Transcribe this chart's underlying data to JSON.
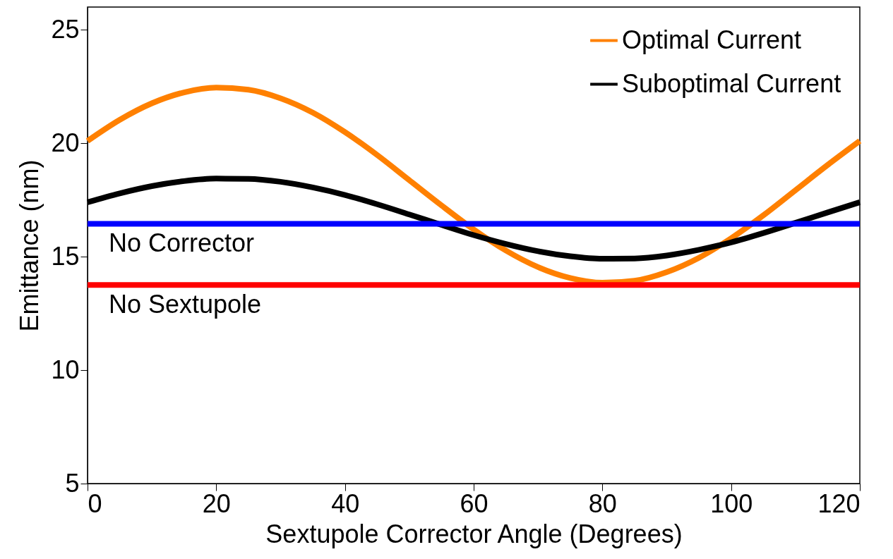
{
  "chart_data": {
    "type": "line",
    "xlabel": "Sextupole Corrector Angle (Degrees)",
    "ylabel": "Emittance (nm)",
    "x": [
      0,
      5,
      10,
      15,
      20,
      25,
      30,
      35,
      40,
      45,
      50,
      55,
      60,
      65,
      70,
      75,
      80,
      85,
      90,
      95,
      100,
      105,
      110,
      115,
      120
    ],
    "series": [
      {
        "name": "Optimal Current",
        "color": "#ff8000",
        "values": [
          20.1,
          21.03,
          21.76,
          22.24,
          22.45,
          22.36,
          21.98,
          21.35,
          20.49,
          19.48,
          18.37,
          17.26,
          16.2,
          15.27,
          14.54,
          14.06,
          13.85,
          13.94,
          14.32,
          14.95,
          15.81,
          16.82,
          17.93,
          19.04,
          20.1
        ]
      },
      {
        "name": "Suboptimal Current",
        "color": "#000000",
        "values": [
          17.4,
          17.79,
          18.11,
          18.33,
          18.44,
          18.43,
          18.3,
          18.05,
          17.72,
          17.31,
          16.86,
          16.4,
          15.95,
          15.56,
          15.24,
          15.02,
          14.91,
          14.92,
          15.05,
          15.3,
          15.63,
          16.04,
          16.49,
          16.95,
          17.4
        ]
      }
    ],
    "ref_lines": [
      {
        "axis": "y",
        "value": 16.45,
        "label": "No Corrector",
        "color": "#0000ff"
      },
      {
        "axis": "y",
        "value": 13.75,
        "label": "No Sextupole",
        "color": "#ff0000"
      }
    ],
    "xlim": [
      0,
      120
    ],
    "xticks": [
      0,
      20,
      40,
      60,
      80,
      100,
      120
    ],
    "ylim": [
      5,
      26
    ],
    "yticks": [
      5,
      10,
      15,
      20,
      25
    ],
    "grid": false,
    "legend": "top right",
    "marker": "none",
    "line_style": "solid"
  }
}
